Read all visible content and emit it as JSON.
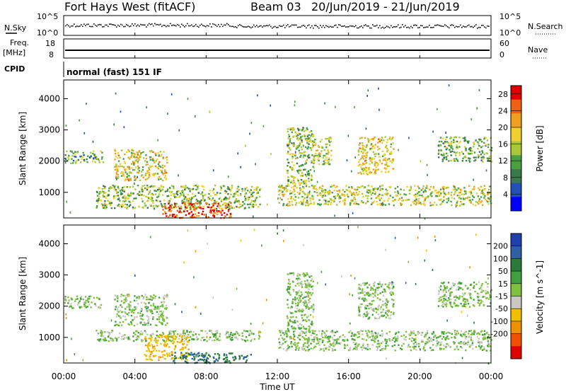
{
  "header": {
    "title": "Fort Hays West (fitACF)",
    "beam": "Beam 03",
    "date_range": "20/Jun/2019 - 21/Jun/2019"
  },
  "strips": {
    "nsky_label": "N.Sky",
    "nsearch_label": "N.Search",
    "noise_ticks": [
      "10^5",
      "10^0"
    ],
    "freq_label_1": "Freq.",
    "freq_label_2": "[MHz]",
    "freq_ticks": [
      "18",
      "8"
    ],
    "nave_label": "Nave",
    "nave_ticks": [
      "60",
      "0"
    ],
    "cpid_label": "CPID",
    "cpid_value": "normal (fast) 151 IF"
  },
  "colors": {
    "power_scale": [
      "#0000ff",
      "#2050b8",
      "#3a7a4a",
      "#4aa040",
      "#a8c83a",
      "#f0d030",
      "#f0a020",
      "#f06010",
      "#e00000"
    ],
    "velocity_scale": [
      "#2040b0",
      "#3060a0",
      "#2a7a3a",
      "#40a040",
      "#80c040",
      "#c8c8c0",
      "#f0c000",
      "#f09000",
      "#f05000",
      "#e00000"
    ]
  },
  "chart_data": [
    {
      "type": "heatmap",
      "panel": "power",
      "ylabel": "Slant Range [km]",
      "yticks": [
        "1000",
        "2000",
        "3000",
        "4000"
      ],
      "ylim": [
        180,
        4600
      ],
      "xlim": [
        "00:00",
        "24:00"
      ],
      "colorbar_label": "Power [dB]",
      "colorbar_ticks": [
        "4",
        "8",
        "12",
        "16",
        "20",
        "24",
        "28"
      ],
      "colorbar_range": [
        0,
        30
      ],
      "echo_regions": [
        {
          "t_start": 0.0,
          "t_end": 2.2,
          "range_km": [
            1950,
            2350
          ],
          "power_db": 12
        },
        {
          "t_start": 2.8,
          "t_end": 5.8,
          "range_km": [
            1400,
            2400
          ],
          "power_db": 18
        },
        {
          "t_start": 1.8,
          "t_end": 11.0,
          "range_km": [
            500,
            1250
          ],
          "power_db": 14
        },
        {
          "t_start": 5.5,
          "t_end": 9.5,
          "range_km": [
            200,
            700
          ],
          "power_db": 26
        },
        {
          "t_start": 12.0,
          "t_end": 24.0,
          "range_km": [
            600,
            1250
          ],
          "power_db": 16
        },
        {
          "t_start": 12.5,
          "t_end": 14.0,
          "range_km": [
            1200,
            3100
          ],
          "power_db": 14
        },
        {
          "t_start": 14.0,
          "t_end": 15.0,
          "range_km": [
            1900,
            2800
          ],
          "power_db": 16
        },
        {
          "t_start": 16.5,
          "t_end": 18.5,
          "range_km": [
            1600,
            2800
          ],
          "power_db": 18
        },
        {
          "t_start": 21.0,
          "t_end": 24.0,
          "range_km": [
            2000,
            2800
          ],
          "power_db": 12
        }
      ]
    },
    {
      "type": "heatmap",
      "panel": "velocity",
      "ylabel": "Slant Range [km]",
      "yticks": [
        "1000",
        "2000",
        "3000",
        "4000"
      ],
      "ylim": [
        180,
        4600
      ],
      "xlim": [
        "00:00",
        "24:00"
      ],
      "xticks": [
        "00:00",
        "04:00",
        "08:00",
        "12:00",
        "16:00",
        "20:00",
        "00:00"
      ],
      "xlabel": "Time UT",
      "colorbar_label": "Velocity [m s^-1]",
      "colorbar_ticks": [
        "200",
        "100",
        "50",
        "15",
        "-15",
        "-50",
        "-100",
        "-200"
      ],
      "colorbar_range": [
        -250,
        250
      ],
      "echo_regions": [
        {
          "t_start": 0.0,
          "t_end": 2.2,
          "range_km": [
            1950,
            2350
          ],
          "velocity": 0
        },
        {
          "t_start": 2.8,
          "t_end": 5.8,
          "range_km": [
            1400,
            2400
          ],
          "velocity": 0
        },
        {
          "t_start": 1.8,
          "t_end": 11.0,
          "range_km": [
            900,
            1250
          ],
          "velocity": 0
        },
        {
          "t_start": 4.5,
          "t_end": 7.0,
          "range_km": [
            300,
            1100
          ],
          "velocity": -80
        },
        {
          "t_start": 6.0,
          "t_end": 10.5,
          "range_km": [
            200,
            550
          ],
          "velocity": 90
        },
        {
          "t_start": 12.0,
          "t_end": 24.0,
          "range_km": [
            600,
            1250
          ],
          "velocity": 0
        },
        {
          "t_start": 12.5,
          "t_end": 14.0,
          "range_km": [
            1200,
            3100
          ],
          "velocity": 0
        },
        {
          "t_start": 16.5,
          "t_end": 18.5,
          "range_km": [
            1600,
            2800
          ],
          "velocity": 0
        },
        {
          "t_start": 21.0,
          "t_end": 24.0,
          "range_km": [
            2000,
            2800
          ],
          "velocity": 0
        }
      ]
    }
  ]
}
